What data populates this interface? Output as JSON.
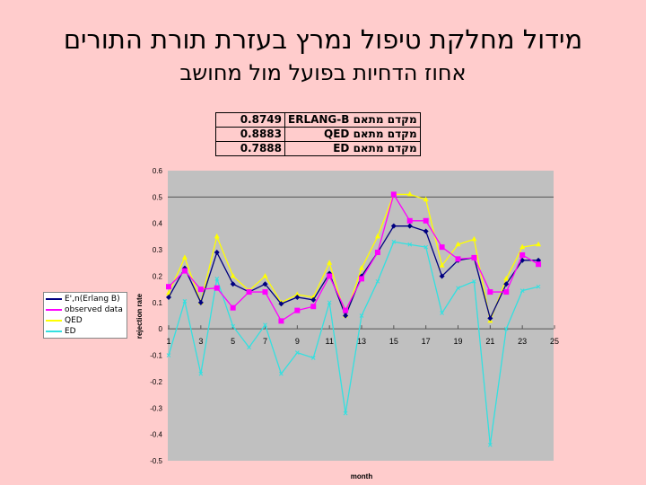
{
  "title": "מידול מחלקת טיפול נמרץ בעזרת תורת התורים",
  "subtitle": "אחוז הדחיות בפועל מול מחושב",
  "coef_table": [
    {
      "label": "מקדם מתאם ERLANG-B",
      "value": "0.8749"
    },
    {
      "label": "מקדם מתאם QED",
      "value": "0.8883"
    },
    {
      "label": "מקדם מתאם ED",
      "value": "0.7888"
    }
  ],
  "chart_data": {
    "type": "line",
    "xlabel": "month",
    "ylabel": "rejection rate",
    "xlim": [
      1,
      25
    ],
    "ylim": [
      -0.5,
      0.6
    ],
    "x_ticks": [
      "1",
      "3",
      "5",
      "7",
      "9",
      "11",
      "13",
      "15",
      "17",
      "19",
      "21",
      "23",
      "25"
    ],
    "y_ticks": [
      "0.6",
      "0.5",
      "0.4",
      "0.3",
      "0.2",
      "0.1",
      "0",
      "-0.1",
      "-0.2",
      "-0.3",
      "-0.4",
      "-0.5"
    ],
    "gridlines": [
      0.5,
      0
    ],
    "legend_position": "left",
    "x": [
      1,
      2,
      3,
      4,
      5,
      6,
      7,
      8,
      9,
      10,
      11,
      12,
      13,
      14,
      15,
      16,
      17,
      18,
      19,
      20,
      21,
      22,
      23,
      24
    ],
    "series": [
      {
        "name": "E',n(Erlang B)",
        "color": "#000080",
        "marker": "diamond",
        "values": [
          0.12,
          0.23,
          0.1,
          0.29,
          0.17,
          0.14,
          0.17,
          0.095,
          0.12,
          0.11,
          0.21,
          0.05,
          0.2,
          0.29,
          0.39,
          0.39,
          0.37,
          0.2,
          0.26,
          0.27,
          0.04,
          0.17,
          0.26,
          0.26
        ]
      },
      {
        "name": "observed data",
        "color": "#ff00ff",
        "marker": "square",
        "values": [
          0.16,
          0.22,
          0.15,
          0.155,
          0.08,
          0.14,
          0.14,
          0.03,
          0.07,
          0.085,
          0.2,
          0.07,
          0.19,
          0.29,
          0.51,
          0.41,
          0.41,
          0.31,
          0.265,
          0.27,
          0.14,
          0.14,
          0.28,
          0.245
        ]
      },
      {
        "name": "QED",
        "color": "#ffff00",
        "marker": "triangle",
        "values": [
          0.135,
          0.27,
          0.1,
          0.35,
          0.2,
          0.145,
          0.2,
          0.1,
          0.13,
          0.12,
          0.25,
          0.05,
          0.23,
          0.35,
          0.51,
          0.51,
          0.49,
          0.24,
          0.32,
          0.34,
          0.03,
          0.19,
          0.31,
          0.32
        ]
      },
      {
        "name": "ED",
        "color": "#33e0e0",
        "marker": "x",
        "values": [
          -0.1,
          0.105,
          -0.17,
          0.19,
          0.01,
          -0.07,
          0.015,
          -0.17,
          -0.09,
          -0.11,
          0.1,
          -0.32,
          0.05,
          0.18,
          0.33,
          0.32,
          0.31,
          0.06,
          0.155,
          0.18,
          -0.44,
          0.0,
          0.145,
          0.16
        ]
      }
    ]
  }
}
